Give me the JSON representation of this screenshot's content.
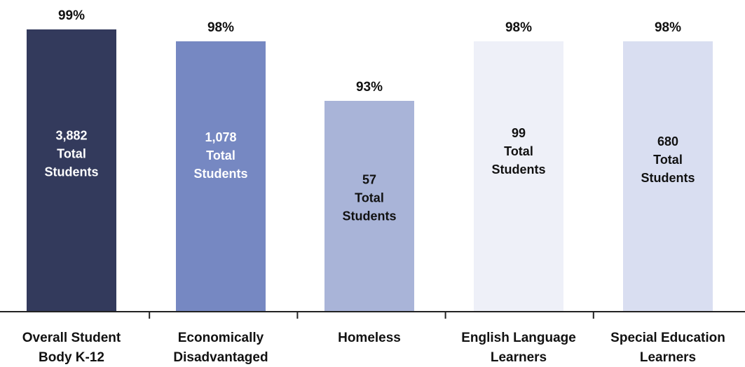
{
  "chart_data": {
    "type": "bar",
    "categories": [
      [
        "Overall Student",
        "Body K-12"
      ],
      [
        "Economically",
        "Disadvantaged"
      ],
      [
        "Homeless"
      ],
      [
        "English Language",
        "Learners"
      ],
      [
        "Special Education",
        "Learners"
      ]
    ],
    "values": [
      99,
      98,
      93,
      98,
      98
    ],
    "value_labels": [
      "99%",
      "98%",
      "93%",
      "98%",
      "98%"
    ],
    "totals": [
      "3,882",
      "1,078",
      "57",
      "99",
      "680"
    ],
    "total_suffix": [
      "Total",
      "Students"
    ],
    "colors": [
      "#333a5c",
      "#7688c2",
      "#a9b4d8",
      "#eef0f8",
      "#d9def1"
    ],
    "inner_text_colors": [
      "#ffffff",
      "#ffffff",
      "#111111",
      "#111111",
      "#111111"
    ],
    "title": "",
    "xlabel": "",
    "ylabel": "",
    "ylim": [
      0,
      100
    ],
    "grid": false,
    "legend": "none"
  }
}
